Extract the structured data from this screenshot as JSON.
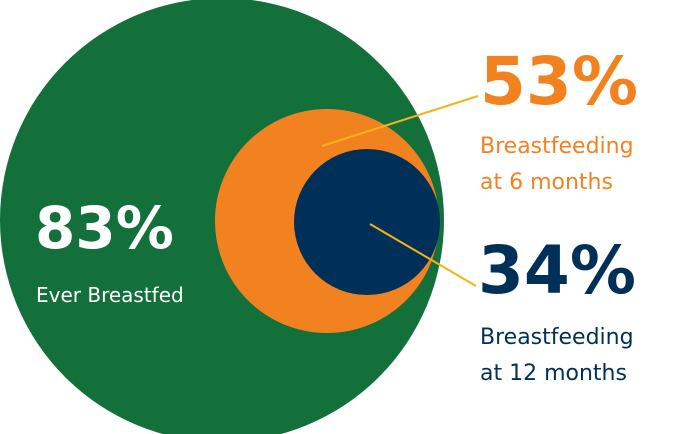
{
  "chart_data": {
    "type": "nested-circle",
    "series": [
      {
        "value": 83,
        "value_label": "83%",
        "label": "Ever Breastfed",
        "color": "#13703a"
      },
      {
        "value": 53,
        "value_label": "53%",
        "label_lines": [
          "Breastfeeding",
          "at 6 months"
        ],
        "color": "#f2821f"
      },
      {
        "value": 34,
        "value_label": "34%",
        "label_lines": [
          "Breastfeeding",
          "at 12 months"
        ],
        "color": "#003057"
      }
    ],
    "leader_line_color": "#f5b21a"
  }
}
